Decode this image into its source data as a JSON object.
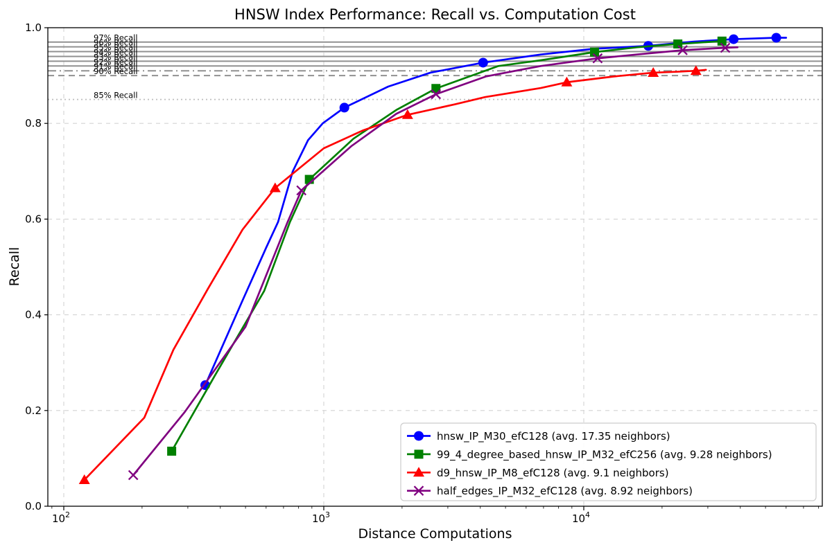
{
  "chart_data": {
    "type": "line",
    "title": "HNSW Index Performance: Recall vs. Computation Cost",
    "xlabel": "Distance Computations",
    "ylabel": "Recall",
    "x_scale": "log",
    "xlim": [
      87,
      82500
    ],
    "ylim": [
      0.0,
      1.0
    ],
    "grid": {
      "visible": true,
      "style": "dashed",
      "which": "major",
      "color": "#d3d3d3"
    },
    "x_ticks": [
      {
        "value": 100,
        "base": "10",
        "exp": "2"
      },
      {
        "value": 1000,
        "base": "10",
        "exp": "3"
      },
      {
        "value": 10000,
        "base": "10",
        "exp": "4"
      }
    ],
    "y_ticks": [
      {
        "value": 0.0,
        "label": "0.0"
      },
      {
        "value": 0.2,
        "label": "0.2"
      },
      {
        "value": 0.4,
        "label": "0.4"
      },
      {
        "value": 0.6,
        "label": "0.6"
      },
      {
        "value": 0.8,
        "label": "0.8"
      },
      {
        "value": 1.0,
        "label": "1.0"
      }
    ],
    "recall_lines": [
      {
        "recall": 0.97,
        "label": "97% Recall",
        "style": "solid",
        "color": "#909090"
      },
      {
        "recall": 0.96,
        "label": "96% Recall",
        "style": "solid",
        "color": "#909090"
      },
      {
        "recall": 0.95,
        "label": "95% Recall",
        "style": "solid",
        "color": "#909090"
      },
      {
        "recall": 0.94,
        "label": "94% Recall",
        "style": "solid",
        "color": "#909090"
      },
      {
        "recall": 0.93,
        "label": "93% Recall",
        "style": "solid",
        "color": "#909090"
      },
      {
        "recall": 0.92,
        "label": "92% Recall",
        "style": "solid",
        "color": "#909090"
      },
      {
        "recall": 0.91,
        "label": "91% Recall",
        "style": "dashdot",
        "color": "#909090"
      },
      {
        "recall": 0.9,
        "label": "90% Recall",
        "style": "dashed",
        "color": "#909090"
      },
      {
        "recall": 0.85,
        "label": "85% Recall",
        "style": "dotted",
        "color": "#bdbdbd"
      }
    ],
    "legend": {
      "position": "lower right"
    },
    "series": [
      {
        "name": "hnsw_IP_M30_efC128 (avg. 17.35 neighbors)",
        "color": "#0000ff",
        "marker": "circle",
        "markers": [
          [
            350,
            0.253
          ],
          [
            1200,
            0.833
          ],
          [
            4100,
            0.927
          ],
          [
            17700,
            0.962
          ],
          [
            37700,
            0.976
          ],
          [
            55000,
            0.979
          ]
        ],
        "path": [
          [
            350,
            0.253
          ],
          [
            487,
            0.43
          ],
          [
            600,
            0.54
          ],
          [
            667,
            0.594
          ],
          [
            760,
            0.7
          ],
          [
            870,
            0.765
          ],
          [
            990,
            0.8
          ],
          [
            1200,
            0.833
          ],
          [
            1770,
            0.877
          ],
          [
            2570,
            0.906
          ],
          [
            4100,
            0.927
          ],
          [
            6840,
            0.944
          ],
          [
            11000,
            0.956
          ],
          [
            17700,
            0.962
          ],
          [
            26500,
            0.971
          ],
          [
            37700,
            0.976
          ],
          [
            55000,
            0.979
          ],
          [
            60000,
            0.979
          ]
        ]
      },
      {
        "name": "99_4_degree_based_hnsw_IP_M32_efC256 (avg. 9.28 neighbors)",
        "color": "#008000",
        "marker": "square",
        "markers": [
          [
            260,
            0.115
          ],
          [
            880,
            0.683
          ],
          [
            2700,
            0.873
          ],
          [
            11000,
            0.949
          ],
          [
            23000,
            0.966
          ],
          [
            34000,
            0.972
          ]
        ],
        "path": [
          [
            260,
            0.115
          ],
          [
            382,
            0.274
          ],
          [
            590,
            0.45
          ],
          [
            741,
            0.594
          ],
          [
            880,
            0.683
          ],
          [
            1300,
            0.768
          ],
          [
            1900,
            0.828
          ],
          [
            2700,
            0.873
          ],
          [
            4700,
            0.92
          ],
          [
            6840,
            0.932
          ],
          [
            11000,
            0.949
          ],
          [
            16000,
            0.959
          ],
          [
            23000,
            0.966
          ],
          [
            34000,
            0.972
          ]
        ]
      },
      {
        "name": "d9_hnsw_IP_M8_efC128 (avg. 9.1 neighbors)",
        "color": "#ff0000",
        "marker": "triangle",
        "markers": [
          [
            120,
            0.055
          ],
          [
            650,
            0.665
          ],
          [
            2100,
            0.818
          ],
          [
            8600,
            0.886
          ],
          [
            18500,
            0.906
          ],
          [
            27000,
            0.91
          ]
        ],
        "path": [
          [
            120,
            0.055
          ],
          [
            204,
            0.185
          ],
          [
            264,
            0.327
          ],
          [
            359,
            0.455
          ],
          [
            487,
            0.578
          ],
          [
            650,
            0.665
          ],
          [
            1000,
            0.748
          ],
          [
            1410,
            0.785
          ],
          [
            2100,
            0.818
          ],
          [
            3200,
            0.84
          ],
          [
            4170,
            0.855
          ],
          [
            6840,
            0.874
          ],
          [
            8600,
            0.886
          ],
          [
            13000,
            0.898
          ],
          [
            18500,
            0.906
          ],
          [
            23000,
            0.908
          ],
          [
            27000,
            0.91
          ],
          [
            29500,
            0.912
          ]
        ]
      },
      {
        "name": "half_edges_IP_M32_efC128 (avg. 8.92 neighbors)",
        "color": "#800080",
        "marker": "x",
        "markers": [
          [
            185,
            0.065
          ],
          [
            820,
            0.66
          ],
          [
            2700,
            0.861
          ],
          [
            11300,
            0.936
          ],
          [
            24000,
            0.953
          ],
          [
            35000,
            0.958
          ]
        ],
        "path": [
          [
            185,
            0.065
          ],
          [
            292,
            0.197
          ],
          [
            500,
            0.375
          ],
          [
            726,
            0.594
          ],
          [
            820,
            0.66
          ],
          [
            1280,
            0.753
          ],
          [
            1900,
            0.82
          ],
          [
            2700,
            0.861
          ],
          [
            4200,
            0.898
          ],
          [
            6840,
            0.92
          ],
          [
            11300,
            0.936
          ],
          [
            16000,
            0.944
          ],
          [
            24000,
            0.953
          ],
          [
            35000,
            0.958
          ],
          [
            39000,
            0.959
          ]
        ]
      }
    ]
  }
}
